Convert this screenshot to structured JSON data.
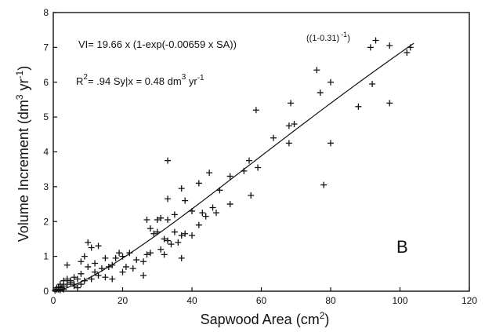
{
  "chart_data": {
    "type": "scatter",
    "xlabel": "Sapwood Area (cm",
    "xlabel_sup": "2",
    "xlabel_end": ")",
    "ylabel": "Volume Increment (dm",
    "ylabel_sup": "3",
    "ylabel_mid": " yr",
    "ylabel_sup2": "-1",
    "ylabel_end": ")",
    "xlim": [
      0,
      120
    ],
    "ylim": [
      0,
      8
    ],
    "x_ticks": [
      "0",
      "20",
      "40",
      "60",
      "80",
      "100",
      "120"
    ],
    "y_ticks": [
      "0",
      "1",
      "2",
      "3",
      "4",
      "5",
      "6",
      "7",
      "8"
    ],
    "panel_label": "B",
    "grid": false,
    "annotations": {
      "eq_main": "VI= 19.66 x (1-exp(-0.00659 x SA))",
      "eq_sup": "((1-0.31)",
      "eq_sup2": "-1",
      "eq_sup_end": ")",
      "r2_prefix": "R",
      "r2_sup": "2",
      "r2_rest": "= .94   Sy|x = 0.48 dm",
      "r2_sup2": "3",
      "r2_end": " yr",
      "r2_sup3": "-1"
    },
    "fit": {
      "a": 19.66,
      "b": 0.00659,
      "c": 0.31,
      "x_range": [
        0,
        104
      ]
    },
    "points": [
      [
        93,
        7.2
      ],
      [
        91.5,
        7.0
      ],
      [
        97,
        7.05
      ],
      [
        103,
        7.0
      ],
      [
        102,
        6.85
      ],
      [
        76,
        6.35
      ],
      [
        80,
        6.0
      ],
      [
        92,
        5.95
      ],
      [
        77,
        5.7
      ],
      [
        97,
        5.4
      ],
      [
        88,
        5.3
      ],
      [
        68.5,
        5.4
      ],
      [
        58.5,
        5.2
      ],
      [
        68,
        4.75
      ],
      [
        69.5,
        4.8
      ],
      [
        63.5,
        4.4
      ],
      [
        68,
        4.25
      ],
      [
        80,
        4.25
      ],
      [
        56.5,
        3.75
      ],
      [
        33,
        3.75
      ],
      [
        45,
        3.4
      ],
      [
        59,
        3.55
      ],
      [
        55,
        3.45
      ],
      [
        51,
        3.3
      ],
      [
        78,
        3.05
      ],
      [
        42,
        3.1
      ],
      [
        37,
        2.95
      ],
      [
        48,
        2.9
      ],
      [
        38,
        2.6
      ],
      [
        57,
        2.75
      ],
      [
        33,
        2.65
      ],
      [
        51,
        2.5
      ],
      [
        27,
        2.05
      ],
      [
        30,
        2.05
      ],
      [
        31,
        2.1
      ],
      [
        33,
        2.05
      ],
      [
        35,
        2.2
      ],
      [
        40,
        2.3
      ],
      [
        43,
        2.25
      ],
      [
        44,
        2.15
      ],
      [
        46,
        2.4
      ],
      [
        47,
        2.25
      ],
      [
        28,
        1.8
      ],
      [
        29,
        1.65
      ],
      [
        30,
        1.7
      ],
      [
        32,
        1.5
      ],
      [
        33,
        1.45
      ],
      [
        35,
        1.7
      ],
      [
        37,
        1.6
      ],
      [
        38,
        1.65
      ],
      [
        40,
        1.6
      ],
      [
        42,
        1.9
      ],
      [
        28,
        1.1
      ],
      [
        31,
        1.2
      ],
      [
        32,
        1.05
      ],
      [
        34,
        1.35
      ],
      [
        36,
        1.4
      ],
      [
        37,
        0.95
      ],
      [
        26,
        0.45
      ],
      [
        19,
        1.1
      ],
      [
        20,
        1.0
      ],
      [
        22,
        1.1
      ],
      [
        24,
        0.9
      ],
      [
        26,
        0.85
      ],
      [
        27,
        1.05
      ],
      [
        18,
        0.95
      ],
      [
        21,
        0.7
      ],
      [
        23,
        0.65
      ],
      [
        20,
        0.55
      ],
      [
        17,
        0.75
      ],
      [
        13,
        1.3
      ],
      [
        15,
        0.95
      ],
      [
        12,
        0.8
      ],
      [
        14,
        0.65
      ],
      [
        16,
        0.7
      ],
      [
        10,
        1.4
      ],
      [
        11,
        1.25
      ],
      [
        9,
        1.0
      ],
      [
        8,
        0.85
      ],
      [
        10,
        0.7
      ],
      [
        12,
        0.55
      ],
      [
        13,
        0.45
      ],
      [
        15,
        0.4
      ],
      [
        17,
        0.35
      ],
      [
        11,
        0.35
      ],
      [
        4,
        0.75
      ],
      [
        6,
        0.4
      ],
      [
        7,
        0.35
      ],
      [
        8,
        0.5
      ],
      [
        9,
        0.3
      ],
      [
        5,
        0.25
      ],
      [
        6,
        0.2
      ],
      [
        4,
        0.2
      ],
      [
        3,
        0.15
      ],
      [
        2.5,
        0.1
      ],
      [
        2,
        0.1
      ],
      [
        1.5,
        0.05
      ],
      [
        1,
        0.05
      ],
      [
        0.5,
        0.02
      ],
      [
        1,
        0.1
      ],
      [
        2,
        0.2
      ],
      [
        3,
        0.3
      ],
      [
        4,
        0.35
      ],
      [
        5,
        0.3
      ],
      [
        6,
        0.15
      ],
      [
        7,
        0.1
      ],
      [
        3,
        0.05
      ],
      [
        2,
        0.03
      ],
      [
        1.5,
        0.12
      ],
      [
        8,
        0.2
      ]
    ]
  }
}
